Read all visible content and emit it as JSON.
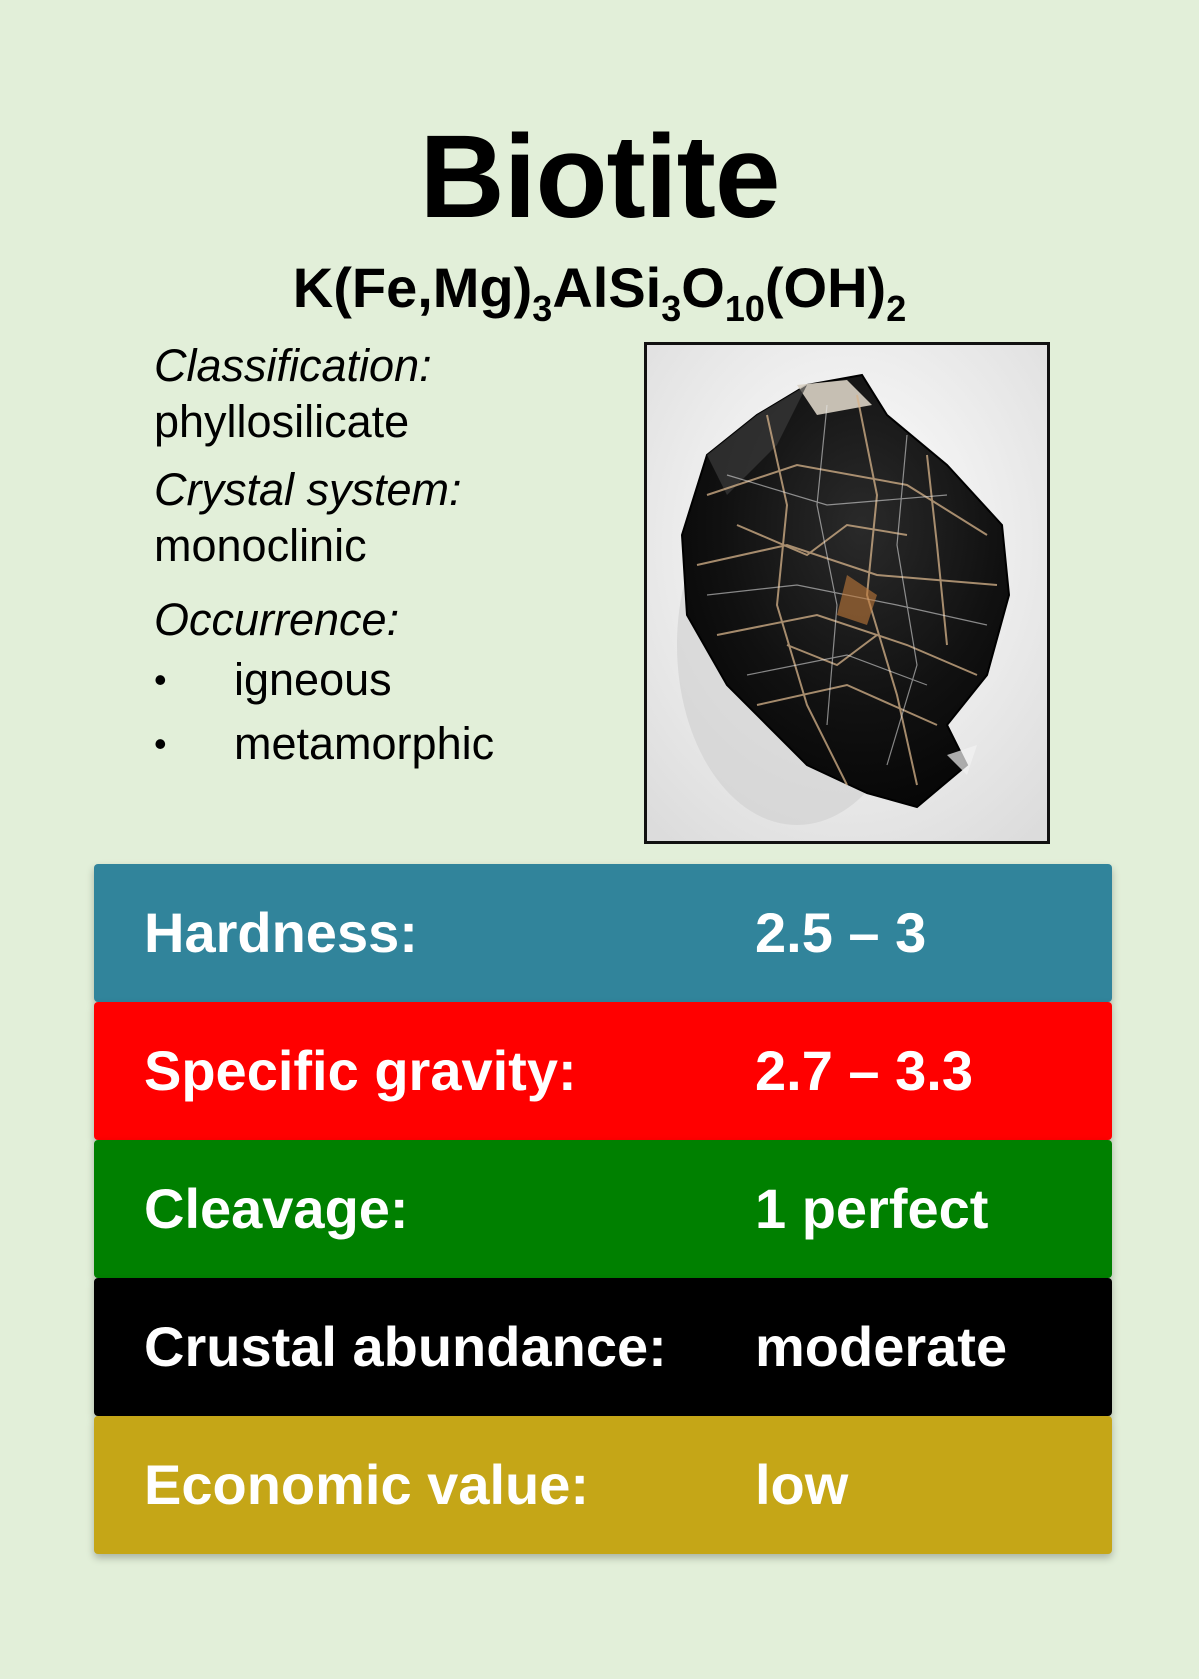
{
  "title": "Biotite",
  "formula": {
    "p1": "K(Fe,Mg)",
    "s1": "3",
    "p2": "AlSi",
    "s2": "3",
    "p3": "O",
    "s3": "10",
    "p4": "(OH)",
    "s4": "2"
  },
  "info": {
    "classification_label": "Classification:",
    "classification_value": "phyllosilicate",
    "crystal_label": "Crystal system:",
    "crystal_value": "monoclinic",
    "occurrence_label": "Occurrence:",
    "bullet_char": "•",
    "occurrence_items": [
      "igneous",
      "metamorphic"
    ]
  },
  "photo_icon": "mineral-photo",
  "properties": [
    {
      "label": "Hardness:",
      "value": "2.5 – 3",
      "color": "#31849b"
    },
    {
      "label": "Specific gravity:",
      "value": "2.7 – 3.3",
      "color": "#ff0000"
    },
    {
      "label": "Cleavage:",
      "value": "1 perfect",
      "color": "#008000"
    },
    {
      "label": "Crustal abundance:",
      "value": "moderate",
      "color": "#000000"
    },
    {
      "label": "Economic value:",
      "value": "low",
      "color": "#c5a617"
    }
  ]
}
